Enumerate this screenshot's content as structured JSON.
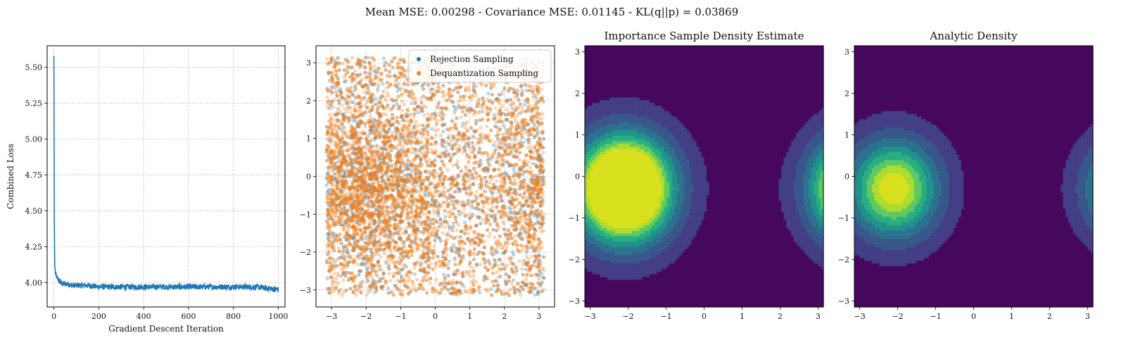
{
  "suptitle": "Mean MSE: 0.00298 - Covariance MSE: 0.01145 - KL(q||p) = 0.03869",
  "chart_data": [
    {
      "type": "line",
      "title": "",
      "xlabel": "Gradient Descent Iteration",
      "ylabel": "Combined Loss",
      "xlim": [
        -30,
        1030
      ],
      "ylim": [
        3.83,
        5.65
      ],
      "xticks": [
        0,
        200,
        400,
        600,
        800,
        1000
      ],
      "xtick_labels": [
        "0",
        "200",
        "400",
        "600",
        "800",
        "1000"
      ],
      "yticks": [
        4.0,
        4.25,
        4.5,
        4.75,
        5.0,
        5.25,
        5.5
      ],
      "ytick_labels": [
        "4.00",
        "4.25",
        "4.50",
        "4.75",
        "5.00",
        "5.25",
        "5.50"
      ],
      "grid": true,
      "color": "#1f77b4",
      "series": [
        {
          "x": [
            0,
            1,
            2,
            3,
            4,
            6,
            8,
            10,
            15,
            20,
            30,
            40,
            60,
            80,
            100,
            150,
            200,
            300,
            400,
            500,
            600,
            700,
            800,
            900,
            1000
          ],
          "values": [
            5.58,
            4.95,
            4.45,
            4.25,
            4.12,
            4.08,
            4.06,
            4.05,
            4.03,
            4.02,
            4.0,
            3.99,
            3.99,
            3.98,
            3.98,
            3.98,
            3.97,
            3.97,
            3.97,
            3.97,
            3.97,
            3.97,
            3.97,
            3.97,
            3.95
          ],
          "noise": 0.02
        }
      ]
    },
    {
      "type": "scatter",
      "title": "",
      "xlim": [
        -3.45,
        3.45
      ],
      "ylim": [
        -3.45,
        3.45
      ],
      "xticks": [
        -3,
        -2,
        -1,
        0,
        1,
        2,
        3
      ],
      "xtick_labels": [
        "−3",
        "−2",
        "−1",
        "0",
        "1",
        "2",
        "3"
      ],
      "yticks": [
        -3,
        -2,
        -1,
        0,
        1,
        2,
        3
      ],
      "ytick_labels": [
        "−3",
        "−2",
        "−1",
        "0",
        "1",
        "2",
        "3"
      ],
      "grid": true,
      "legend_position": "top-right",
      "series": [
        {
          "name": "Rejection Sampling",
          "color": "#1f77b4",
          "count": 2600,
          "center": [
            -2.1,
            -0.3
          ],
          "period_shift": 0
        },
        {
          "name": "Dequantization Sampling",
          "color": "#ff7f0e",
          "count": 5200,
          "center": [
            -2.1,
            -0.3
          ],
          "period_shift": 0
        }
      ]
    },
    {
      "type": "heatmap",
      "title": "Importance Sample Density Estimate",
      "xlim": [
        -3.1416,
        3.1416
      ],
      "ylim": [
        -3.1416,
        3.1416
      ],
      "xticks": [
        -3,
        -2,
        -1,
        0,
        1,
        2,
        3
      ],
      "xtick_labels": [
        "−3",
        "−2",
        "−1",
        "0",
        "1",
        "2",
        "3"
      ],
      "yticks": [
        -3,
        -2,
        -1,
        0,
        1,
        2,
        3
      ],
      "ytick_labels": [
        "−3",
        "−2",
        "−1",
        "0",
        "1",
        "2",
        "3"
      ],
      "center": [
        -2.1,
        -0.3
      ],
      "levels": 8,
      "saturate": 0.55,
      "colormap": [
        "#46085c",
        "#433e85",
        "#38588c",
        "#2c728e",
        "#21918c",
        "#28ae80",
        "#5ec962",
        "#addc30",
        "#d9e11e"
      ]
    },
    {
      "type": "heatmap",
      "title": "Analytic Density",
      "xlim": [
        -3.1416,
        3.1416
      ],
      "ylim": [
        -3.1416,
        3.1416
      ],
      "xticks": [
        -3,
        -2,
        -1,
        0,
        1,
        2,
        3
      ],
      "xtick_labels": [
        "−3",
        "−2",
        "−1",
        "0",
        "1",
        "2",
        "3"
      ],
      "yticks": [
        -3,
        -2,
        -1,
        0,
        1,
        2,
        3
      ],
      "ytick_labels": [
        "−3",
        "−2",
        "−1",
        "0",
        "1",
        "2",
        "3"
      ],
      "center": [
        -2.1,
        -0.3
      ],
      "levels": 8,
      "saturate": 1.0,
      "colormap": [
        "#46085c",
        "#433e85",
        "#38588c",
        "#2c728e",
        "#21918c",
        "#28ae80",
        "#5ec962",
        "#addc30",
        "#d9e11e"
      ]
    }
  ]
}
